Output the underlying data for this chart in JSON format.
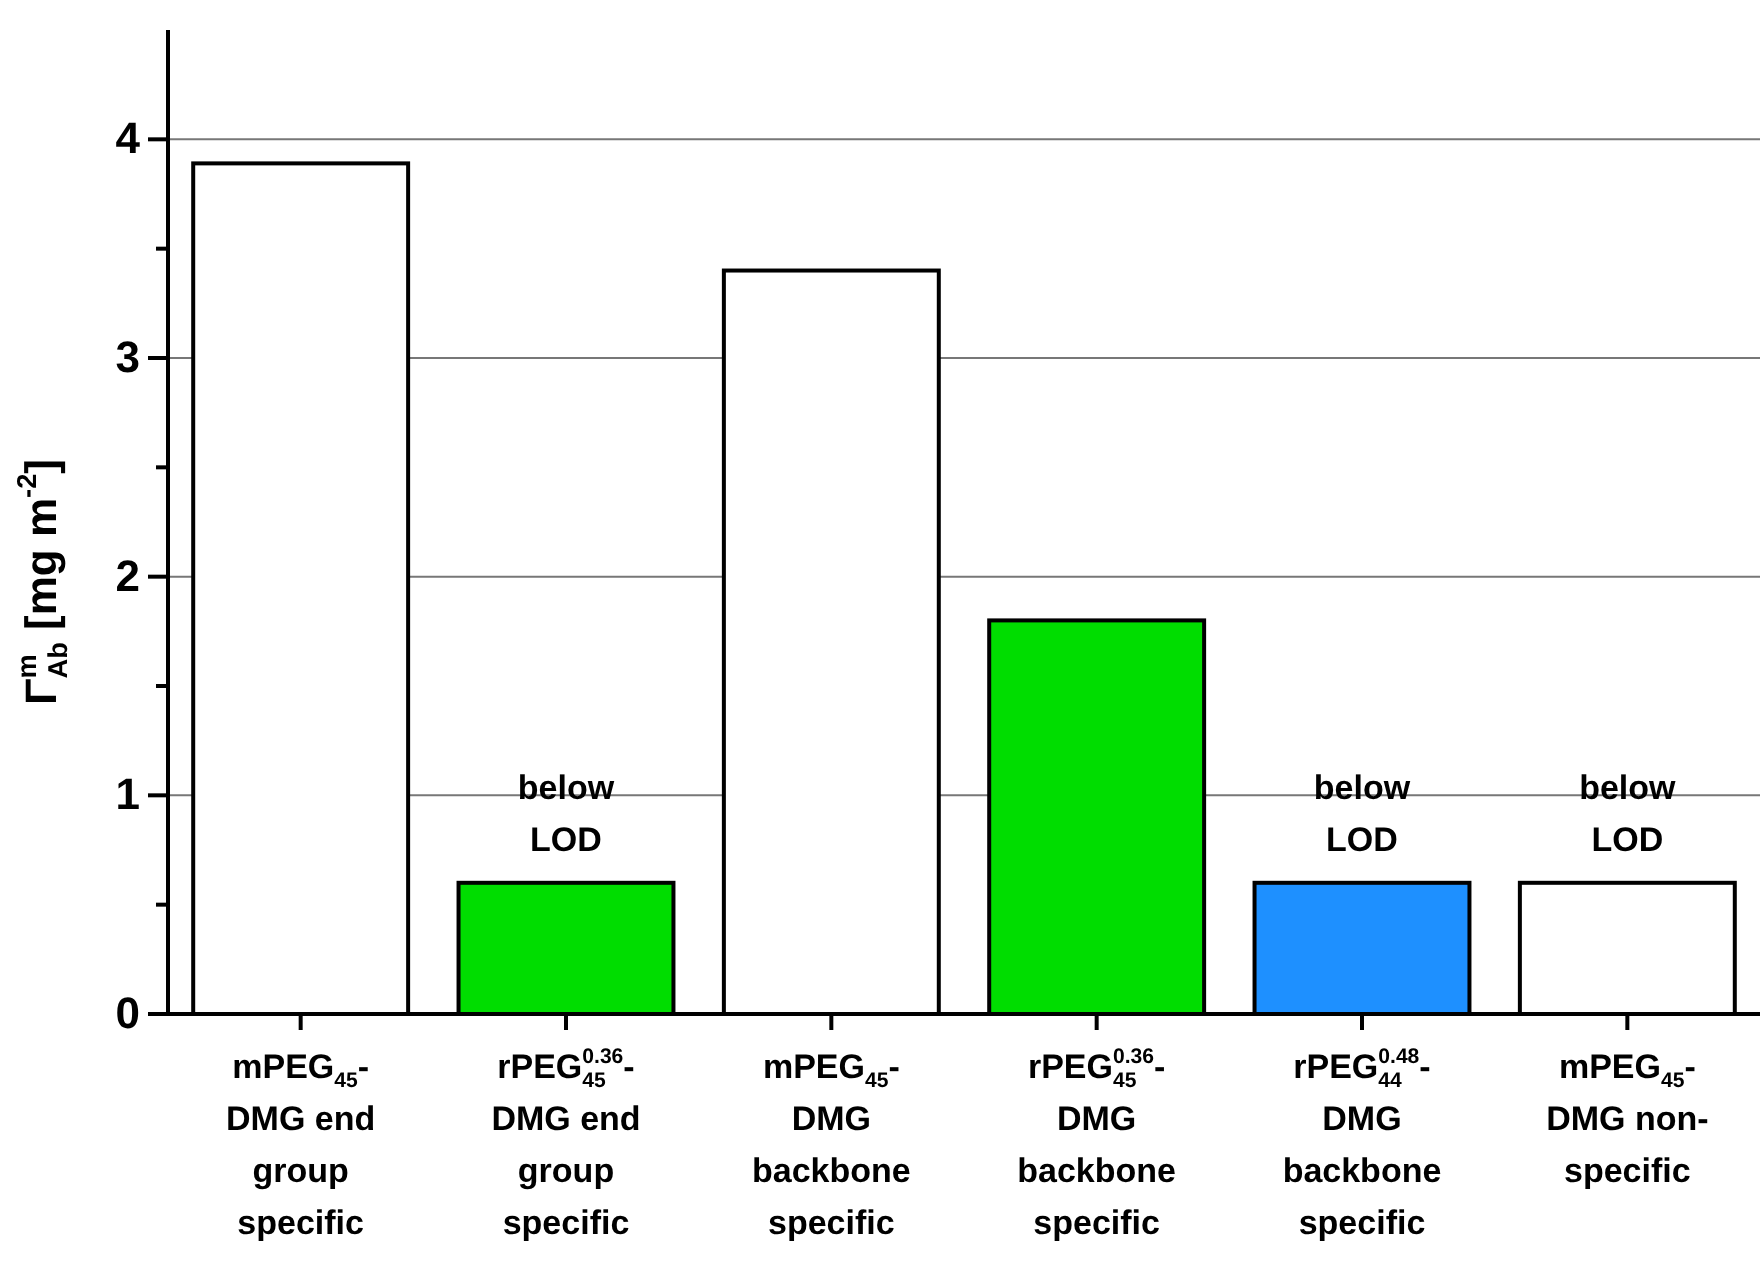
{
  "chart_data": {
    "type": "bar",
    "ylabel": "Γ$^{m}$$_{Ab}$ [mg m$^{-2}$]",
    "categories": [
      "mPEG$_{45}$-DMG end group specific",
      "rPEG$^{0.36}$$_{45}$-DMG end group specific",
      "mPEG$_{45}$-DMG backbone specific",
      "rPEG$^{0.36}$$_{45}$-DMG backbone specific",
      "rPEG$^{0.48}$$_{44}$-DMG backbone specific",
      "mPEG$_{45}$-DMG non-specific"
    ],
    "values": [
      3.89,
      0.6,
      3.4,
      1.8,
      0.6,
      0.6
    ],
    "colors": [
      "#ffffff",
      "#00dd00",
      "#ffffff",
      "#00dd00",
      "#1e90ff",
      "#ffffff"
    ],
    "ylim": [
      0,
      4.5
    ],
    "yticks": [
      0,
      {
        "value": 0.5,
        "label": null
      },
      1,
      {
        "value": 1.5,
        "label": null
      },
      2,
      {
        "value": 2.5,
        "label": null
      },
      3,
      {
        "value": 3.5,
        "label": null
      },
      4
    ],
    "grid": "y",
    "annotations": [
      {
        "text": "below LOD",
        "x": "rPEG$^{0.36}$$_{45}$-DMG end group specific",
        "y": 0.6
      },
      {
        "text": "below LOD",
        "x": "rPEG$^{0.48}$$_{44}$-DMG backbone specific",
        "y": 0.6
      },
      {
        "text": "below LOD",
        "x": "mPEG$_{45}$-DMG non-specific",
        "y": 0.6
      }
    ]
  }
}
